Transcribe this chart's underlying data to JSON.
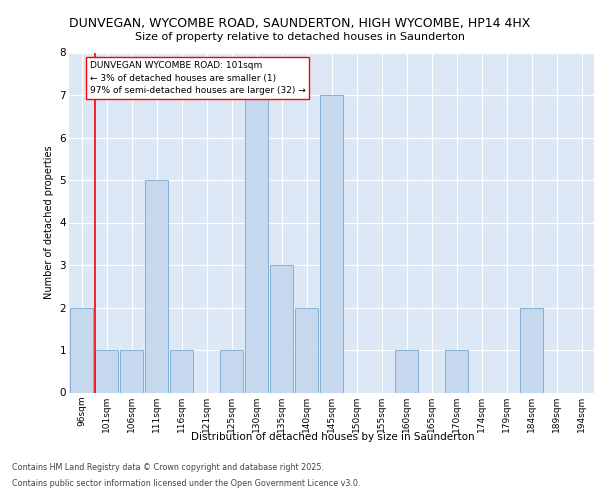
{
  "title_line1": "DUNVEGAN, WYCOMBE ROAD, SAUNDERTON, HIGH WYCOMBE, HP14 4HX",
  "title_line2": "Size of property relative to detached houses in Saunderton",
  "xlabel": "Distribution of detached houses by size in Saunderton",
  "ylabel": "Number of detached properties",
  "categories": [
    "96sqm",
    "101sqm",
    "106sqm",
    "111sqm",
    "116sqm",
    "121sqm",
    "125sqm",
    "130sqm",
    "135sqm",
    "140sqm",
    "145sqm",
    "150sqm",
    "155sqm",
    "160sqm",
    "165sqm",
    "170sqm",
    "174sqm",
    "179sqm",
    "184sqm",
    "189sqm",
    "194sqm"
  ],
  "values": [
    2,
    1,
    1,
    5,
    1,
    0,
    1,
    7,
    3,
    2,
    7,
    0,
    0,
    1,
    0,
    1,
    0,
    0,
    2,
    0,
    0
  ],
  "highlight_index": 1,
  "bar_color": "#c5d8ee",
  "bar_edge_color": "#7aaad0",
  "annotation_text": "DUNVEGAN WYCOMBE ROAD: 101sqm\n← 3% of detached houses are smaller (1)\n97% of semi-detached houses are larger (32) →",
  "ylim": [
    0,
    8
  ],
  "yticks": [
    0,
    1,
    2,
    3,
    4,
    5,
    6,
    7,
    8
  ],
  "footer_line1": "Contains HM Land Registry data © Crown copyright and database right 2025.",
  "footer_line2": "Contains public sector information licensed under the Open Government Licence v3.0.",
  "bg_color": "#dce8f5",
  "grid_color": "#ffffff",
  "fig_bg_color": "#ffffff"
}
